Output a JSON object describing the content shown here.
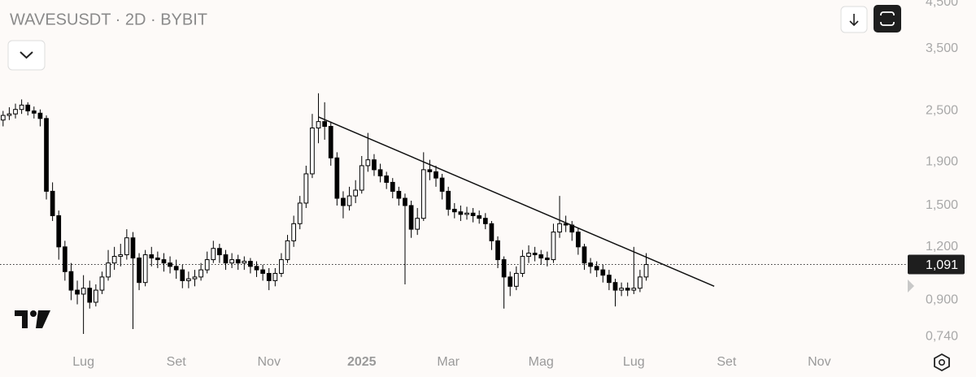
{
  "chart_data": {
    "type": "candlestick",
    "title": "WAVESUSDT · 2D · BYBIT",
    "categories": [
      null,
      null,
      null,
      null,
      null,
      null,
      null,
      null,
      null,
      null,
      null,
      null,
      null,
      "Lug",
      null,
      null,
      null,
      null,
      null,
      null,
      null,
      null,
      null,
      null,
      null,
      null,
      null,
      null,
      "Set",
      null,
      null,
      null,
      null,
      null,
      null,
      null,
      null,
      null,
      null,
      null,
      null,
      null,
      null,
      "Nov",
      null,
      null,
      null,
      null,
      null,
      null,
      null,
      null,
      null,
      null,
      null,
      null,
      null,
      null,
      "2025",
      null,
      null,
      null,
      null,
      null,
      null,
      null,
      null,
      null,
      null,
      null,
      null,
      null,
      "Mar",
      null,
      null,
      null,
      null,
      null,
      null,
      null,
      null,
      null,
      null,
      null,
      null,
      null,
      null,
      "Mag",
      null,
      null,
      null,
      null,
      null,
      null,
      null,
      null,
      null,
      null,
      null,
      null,
      null,
      null,
      "Lug",
      null,
      null,
      null,
      null,
      null,
      null,
      null,
      null,
      null,
      null,
      null,
      null,
      null,
      null,
      "Set",
      null,
      null,
      null,
      null,
      null,
      null,
      null,
      null,
      null,
      null,
      null,
      null,
      null,
      null,
      "Nov",
      null,
      null,
      null,
      null,
      null,
      null,
      null,
      null,
      null,
      null,
      null,
      null,
      null
    ],
    "open": [
      2.38,
      2.44,
      2.46,
      2.52,
      2.58,
      2.5,
      2.47,
      2.4,
      1.62,
      1.42,
      1.2,
      1.05,
      0.95,
      0.93,
      0.96,
      0.89,
      0.95,
      1.02,
      1.1,
      1.14,
      1.15,
      1.26,
      1.13,
      0.99,
      1.15,
      1.13,
      1.12,
      1.1,
      1.08,
      1.06,
      1.0,
      1.01,
      1.02,
      1.06,
      1.12,
      1.19,
      1.15,
      1.1,
      1.12,
      1.1,
      1.11,
      1.08,
      1.06,
      1.04,
      1.0,
      1.04,
      1.12,
      1.24,
      1.36,
      1.52,
      1.78,
      2.28,
      2.36,
      2.3,
      1.94,
      1.56,
      1.5,
      1.58,
      1.63,
      1.86,
      1.92,
      1.82,
      1.76,
      1.7,
      1.62,
      1.56,
      1.5,
      1.32,
      1.4,
      1.82,
      1.8,
      1.74,
      1.62,
      1.47,
      1.45,
      1.43,
      1.44,
      1.42,
      1.4,
      1.36,
      1.24,
      1.12,
      1.02,
      0.97,
      1.04,
      1.14,
      1.16,
      1.15,
      1.13,
      1.12,
      1.3,
      1.36,
      1.35,
      1.3,
      1.2,
      1.1,
      1.08,
      1.06,
      1.03,
      0.99,
      0.95,
      0.96,
      0.95,
      0.96,
      1.02,
      null,
      null,
      null,
      null,
      null,
      null,
      null,
      null,
      null,
      null,
      null,
      null,
      null,
      null,
      null,
      null,
      null,
      null,
      null,
      null,
      null,
      null,
      null,
      null,
      null,
      null,
      null,
      null,
      null,
      null,
      null,
      null,
      null,
      null,
      null,
      null,
      null,
      null,
      null,
      null,
      null
    ],
    "high": [
      2.5,
      2.55,
      2.6,
      2.66,
      2.62,
      2.56,
      2.52,
      2.44,
      1.7,
      1.46,
      1.24,
      1.1,
      1.0,
      1.03,
      1.0,
      0.98,
      1.05,
      1.18,
      1.2,
      1.22,
      1.32,
      1.3,
      1.16,
      1.18,
      1.2,
      1.17,
      1.16,
      1.14,
      1.12,
      1.09,
      1.05,
      1.06,
      1.1,
      1.17,
      1.24,
      1.22,
      1.18,
      1.16,
      1.15,
      1.14,
      1.13,
      1.11,
      1.09,
      1.07,
      1.07,
      1.16,
      1.28,
      1.42,
      1.58,
      1.86,
      2.46,
      2.75,
      2.62,
      2.36,
      2.0,
      1.62,
      1.66,
      1.72,
      1.96,
      2.22,
      1.98,
      1.88,
      1.8,
      1.74,
      1.66,
      1.6,
      1.54,
      1.48,
      2.0,
      1.92,
      1.86,
      1.78,
      1.66,
      1.52,
      1.5,
      1.49,
      1.48,
      1.46,
      1.44,
      1.38,
      1.27,
      1.14,
      1.05,
      1.08,
      1.18,
      1.21,
      1.2,
      1.18,
      1.17,
      1.36,
      1.58,
      1.42,
      1.38,
      1.33,
      1.22,
      1.13,
      1.11,
      1.09,
      1.06,
      1.01,
      0.99,
      0.99,
      1.2,
      1.06,
      1.16,
      null,
      null,
      null,
      null,
      null,
      null,
      null,
      null,
      null,
      null,
      null,
      null,
      null,
      null,
      null,
      null,
      null,
      null,
      null,
      null,
      null,
      null,
      null,
      null,
      null,
      null,
      null,
      null,
      null,
      null,
      null,
      null,
      null,
      null,
      null,
      null,
      null,
      null,
      null,
      null,
      null
    ],
    "low": [
      2.3,
      2.38,
      2.4,
      2.46,
      2.44,
      2.4,
      2.3,
      1.55,
      1.38,
      1.12,
      1.0,
      0.9,
      0.88,
      0.75,
      0.86,
      0.87,
      0.93,
      1.0,
      1.06,
      1.08,
      1.12,
      0.77,
      0.95,
      0.97,
      1.08,
      1.07,
      1.05,
      1.04,
      1.01,
      0.96,
      0.96,
      0.97,
      1.0,
      1.04,
      1.1,
      1.1,
      1.06,
      1.07,
      1.06,
      1.06,
      1.04,
      1.02,
      1.0,
      0.95,
      0.97,
      1.02,
      1.1,
      1.2,
      1.32,
      1.48,
      1.74,
      2.1,
      2.14,
      1.86,
      1.5,
      1.4,
      1.46,
      1.52,
      1.6,
      1.8,
      1.76,
      1.7,
      1.64,
      1.56,
      1.5,
      0.98,
      1.26,
      1.28,
      1.38,
      1.72,
      1.66,
      1.55,
      1.42,
      1.4,
      1.38,
      1.39,
      1.37,
      1.36,
      1.32,
      1.18,
      1.07,
      0.86,
      0.92,
      0.95,
      1.02,
      1.1,
      1.11,
      1.09,
      1.08,
      1.1,
      1.26,
      1.3,
      1.24,
      1.15,
      1.06,
      1.04,
      1.02,
      0.99,
      0.95,
      0.87,
      0.92,
      0.92,
      0.93,
      0.94,
      1.0,
      null,
      null,
      null,
      null,
      null,
      null,
      null,
      null,
      null,
      null,
      null,
      null,
      null,
      null,
      null,
      null,
      null,
      null,
      null,
      null,
      null,
      null,
      null,
      null,
      null,
      null,
      null,
      null,
      null,
      null,
      null,
      null,
      null,
      null,
      null,
      null,
      null,
      null,
      null,
      null,
      null
    ],
    "close": [
      2.44,
      2.46,
      2.52,
      2.58,
      2.5,
      2.47,
      2.4,
      1.62,
      1.42,
      1.2,
      1.05,
      0.95,
      0.93,
      0.96,
      0.89,
      0.95,
      1.02,
      1.1,
      1.14,
      1.15,
      1.26,
      1.13,
      0.99,
      1.15,
      1.13,
      1.12,
      1.1,
      1.08,
      1.06,
      1.0,
      1.01,
      1.02,
      1.06,
      1.12,
      1.19,
      1.15,
      1.1,
      1.12,
      1.1,
      1.11,
      1.08,
      1.06,
      1.04,
      1.0,
      1.04,
      1.12,
      1.24,
      1.36,
      1.52,
      1.78,
      2.28,
      2.36,
      2.3,
      1.94,
      1.56,
      1.5,
      1.58,
      1.63,
      1.86,
      1.92,
      1.82,
      1.76,
      1.7,
      1.62,
      1.56,
      1.5,
      1.32,
      1.4,
      1.82,
      1.8,
      1.74,
      1.62,
      1.47,
      1.45,
      1.43,
      1.44,
      1.42,
      1.4,
      1.36,
      1.24,
      1.12,
      1.02,
      0.97,
      1.04,
      1.14,
      1.16,
      1.15,
      1.13,
      1.12,
      1.3,
      1.36,
      1.35,
      1.3,
      1.2,
      1.1,
      1.08,
      1.06,
      1.03,
      0.99,
      0.95,
      0.96,
      0.95,
      0.96,
      1.02,
      1.091,
      null,
      null,
      null,
      null,
      null,
      null,
      null,
      null,
      null,
      null,
      null,
      null,
      null,
      null,
      null,
      null,
      null,
      null,
      null,
      null,
      null,
      null,
      null,
      null,
      null,
      null,
      null,
      null,
      null,
      null,
      null,
      null,
      null,
      null,
      null,
      null,
      null,
      null,
      null,
      null,
      null
    ],
    "color_up": "#ffffff",
    "color_down": "#000000",
    "color_edge": "#000000",
    "log_scale": true,
    "grid": false,
    "ylim": [
      0.69,
      4.55
    ],
    "yticks": [
      {
        "value": 4.5,
        "label": "4,500"
      },
      {
        "value": 3.5,
        "label": "3,500"
      },
      {
        "value": 2.5,
        "label": "2,500"
      },
      {
        "value": 1.9,
        "label": "1,900"
      },
      {
        "value": 1.5,
        "label": "1,500"
      },
      {
        "value": 1.2,
        "label": "1,200"
      },
      {
        "value": 0.9,
        "label": "0,900"
      },
      {
        "value": 0.74,
        "label": "0,740"
      }
    ],
    "last_price": {
      "value": 1.091,
      "label": "1,091"
    },
    "trendline": {
      "x": [
        51,
        115
      ],
      "y": [
        2.42,
        0.97
      ]
    }
  }
}
